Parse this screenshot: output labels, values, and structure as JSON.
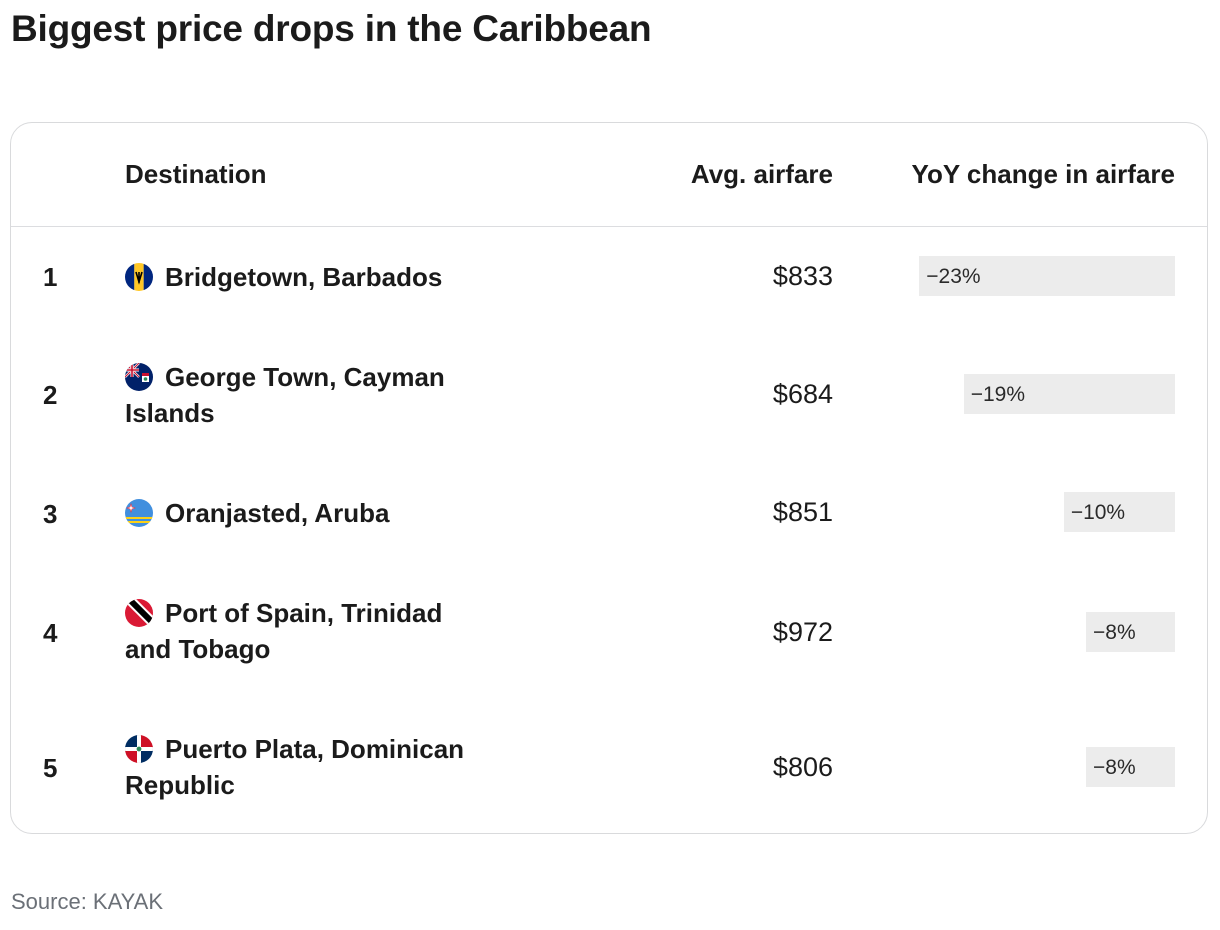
{
  "title": "Biggest price drops in the Caribbean",
  "source": "Source: KAYAK",
  "chart_data": {
    "type": "table",
    "columns": [
      "",
      "Destination",
      "Avg. airfare",
      "YoY change in airfare"
    ],
    "rows": [
      {
        "rank": "1",
        "destination": "Bridgetown, Barbados",
        "airfare": "$833",
        "yoy_label": "−23%",
        "yoy": -23,
        "flag": "barbados-flag-icon"
      },
      {
        "rank": "2",
        "destination": "George Town, Cayman Islands",
        "airfare": "$684",
        "yoy_label": "−19%",
        "yoy": -19,
        "flag": "cayman-islands-flag-icon"
      },
      {
        "rank": "3",
        "destination": "Oranjasted, Aruba",
        "airfare": "$851",
        "yoy_label": "−10%",
        "yoy": -10,
        "flag": "aruba-flag-icon"
      },
      {
        "rank": "4",
        "destination": "Port of Spain, Trinidad and Tobago",
        "airfare": "$972",
        "yoy_label": "−8%",
        "yoy": -8,
        "flag": "trinidad-and-tobago-flag-icon"
      },
      {
        "rank": "5",
        "destination": "Puerto Plata, Dominican Republic",
        "airfare": "$806",
        "yoy_label": "−8%",
        "yoy": -8,
        "flag": "dominican-republic-flag-icon"
      }
    ],
    "bar_max": 25,
    "colors": {
      "bar": "#ececec",
      "text": "#1b1b1b",
      "source": "#6b7077",
      "border": "#d9dadc"
    }
  }
}
